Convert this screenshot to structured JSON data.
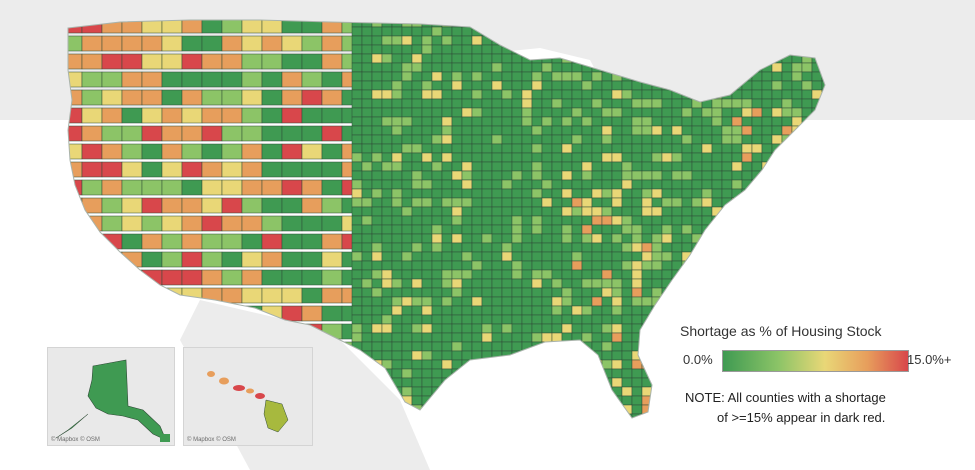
{
  "map": {
    "colors": {
      "ocean": "#ffffff",
      "land_background": "#ececec",
      "county_border": "#2f4a36",
      "green": "#3f9a52",
      "light_green": "#8cc467",
      "yellow": "#e9d777",
      "orange": "#e79e5c",
      "red": "#d8474b"
    }
  },
  "insets": {
    "alaska_attribution": "© Mapbox © OSM",
    "hawaii_attribution": "© Mapbox © OSM"
  },
  "legend": {
    "title": "Shortage as % of Housing Stock",
    "min_label": "0.0%",
    "max_label": "15.0%+",
    "gradient": [
      "#3f9a52",
      "#8cc467",
      "#e9d777",
      "#e79e5c",
      "#d8474b"
    ],
    "note_line1": "NOTE: All counties with a shortage",
    "note_line2": "of >=15% appear in dark red."
  }
}
